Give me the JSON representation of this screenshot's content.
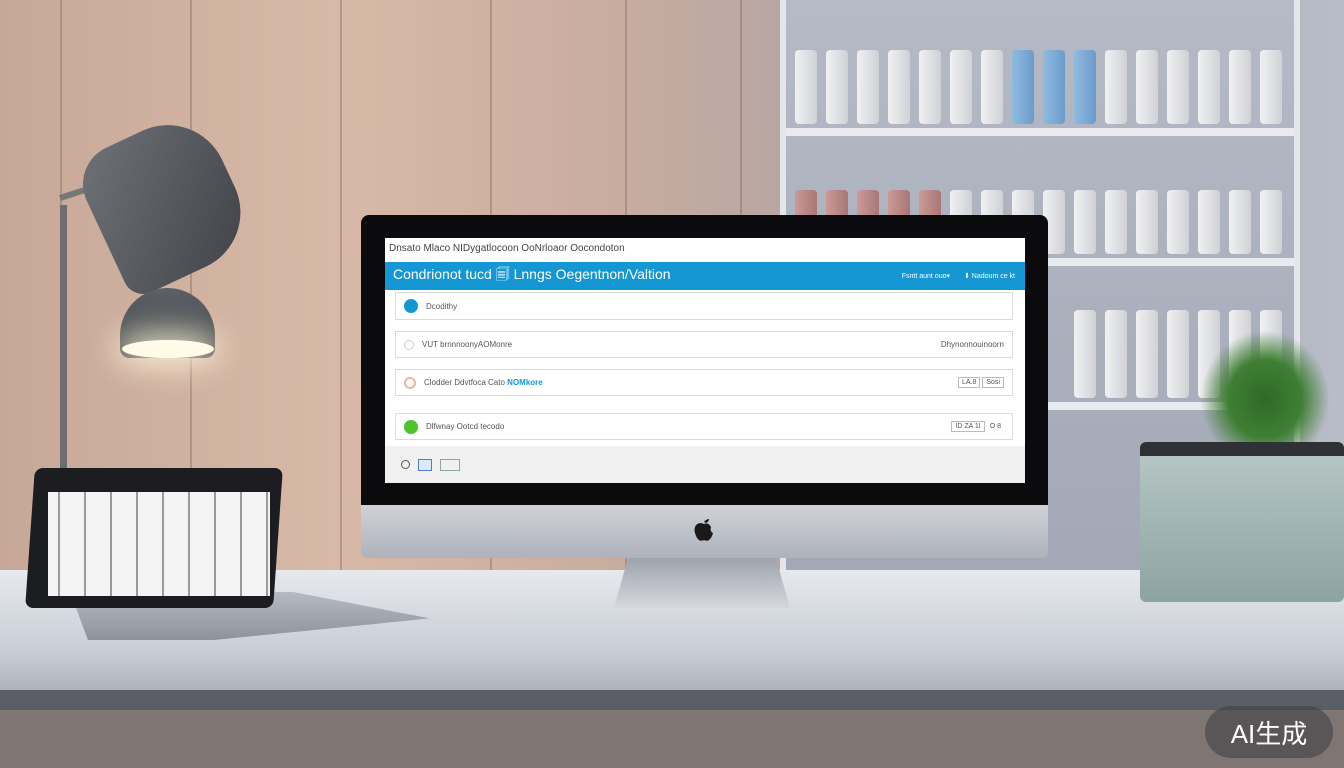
{
  "screen": {
    "breadcrumb": "Dnsato Mlaco NIDygatlocoon OoNrloaor Oocondoton",
    "title": "Condrionot tucd 🗐 Lnngs Oegentnon/Valtion",
    "header_links": [
      "Fsntt aunt ouo▾",
      "⬇ Nadoum ce kt"
    ],
    "rows": [
      {
        "label": "Dcodithy",
        "status_color": "#1597d4",
        "right": ""
      },
      {
        "label": "VUT brnnnoonyAOMonre",
        "status_color": "#e0e0e0",
        "right": "Dhynonnouinoorn"
      },
      {
        "label": "Clodder Ddvtfoca Cato",
        "highlight": "NOMkore",
        "status_color": "#f0b39f",
        "buttons": [
          "LA.8",
          "Sosi"
        ]
      },
      {
        "label": "Dlfwnay Ootcd tecodo",
        "status_color": "#4cc42a",
        "buttons": [
          "ID ZA 1I",
          "O 8"
        ]
      }
    ],
    "footer_icons": [
      "settings-icon",
      "document-icon",
      "keyboard-icon"
    ]
  },
  "watermark": "AI生成",
  "colors": {
    "accent": "#1597d4",
    "success": "#4cc42a",
    "warning": "#f0b39f"
  }
}
